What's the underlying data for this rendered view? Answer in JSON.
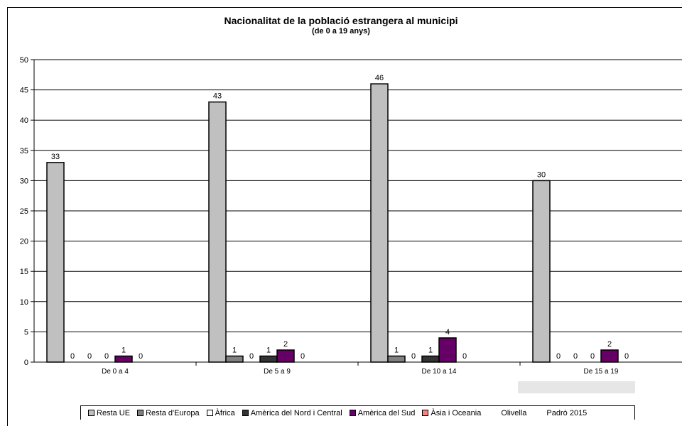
{
  "chart_data": {
    "type": "bar",
    "title": "Nacionalitat  de la població  estrangera al municipi",
    "subtitle": "(de 0 a 19 anys)",
    "categories": [
      "De 0 a 4",
      "De 5 a 9",
      "De 10 a 14",
      "De 15 a 19"
    ],
    "series": [
      {
        "name": "Resta UE",
        "color": "#c0c0c0",
        "values": [
          33,
          43,
          46,
          30
        ]
      },
      {
        "name": "Resta d'Europa",
        "color": "#808080",
        "values": [
          0,
          1,
          1,
          0
        ]
      },
      {
        "name": "Àfrica",
        "color": "#ffffff",
        "values": [
          0,
          0,
          0,
          0
        ]
      },
      {
        "name": "Amèrica del Nord i Central",
        "color": "#333333",
        "values": [
          0,
          1,
          1,
          0
        ]
      },
      {
        "name": "Amèrica del Sud",
        "color": "#660066",
        "values": [
          1,
          2,
          4,
          2
        ]
      },
      {
        "name": "Àsia i Oceania",
        "color": "#ff8080",
        "values": [
          0,
          0,
          0,
          0
        ]
      }
    ],
    "ylim": [
      0,
      50
    ],
    "yticks": [
      0,
      5,
      10,
      15,
      20,
      25,
      30,
      35,
      40,
      45,
      50
    ],
    "grid": true,
    "legend_position": "bottom",
    "data_labels": true
  },
  "legend_extra": [
    "Olivella",
    "Padró 2015"
  ]
}
